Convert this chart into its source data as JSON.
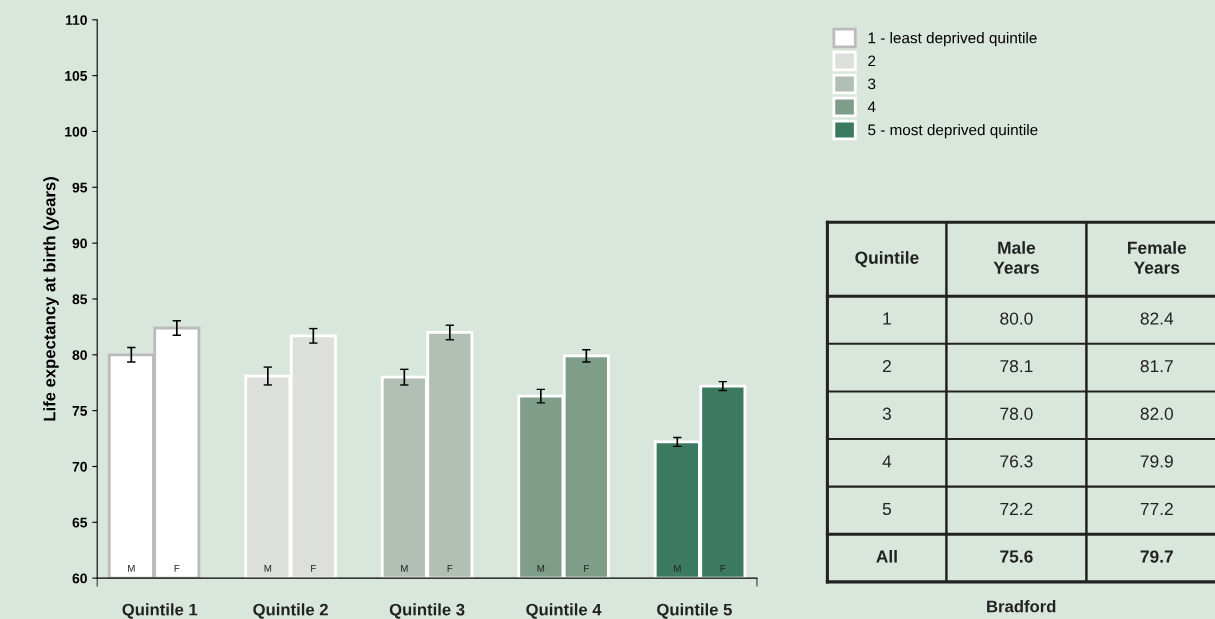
{
  "chart_data": {
    "type": "bar",
    "ylabel": "Life expectancy at birth (years)",
    "categories": [
      "M",
      "F",
      null,
      "M",
      "F",
      null,
      "M",
      "F",
      null,
      "M",
      "F",
      null,
      "M",
      "F"
    ],
    "series": [
      {
        "name": "1 - least deprived quintile",
        "color": "#ffffff",
        "values": [
          80.0,
          82.4,
          null,
          null,
          null,
          null,
          null,
          null,
          null,
          null,
          null,
          null,
          null,
          null
        ],
        "errors": [
          0.65,
          0.65,
          null,
          null,
          null,
          null,
          null,
          null,
          null,
          null,
          null,
          null,
          null,
          null
        ]
      },
      {
        "name": "2",
        "color": "#dcdfdb",
        "values": [
          null,
          null,
          null,
          78.1,
          81.7,
          null,
          null,
          null,
          null,
          null,
          null,
          null,
          null,
          null
        ],
        "errors": [
          null,
          null,
          null,
          0.8,
          0.65,
          null,
          null,
          null,
          null,
          null,
          null,
          null,
          null,
          null
        ]
      },
      {
        "name": "3",
        "color": "#b1bfb4",
        "values": [
          null,
          null,
          null,
          null,
          null,
          null,
          78.0,
          82.0,
          null,
          null,
          null,
          null,
          null,
          null
        ],
        "errors": [
          null,
          null,
          null,
          null,
          null,
          null,
          0.7,
          0.65,
          null,
          null,
          null,
          null,
          null,
          null
        ]
      },
      {
        "name": "4",
        "color": "#7f9e8a",
        "values": [
          null,
          null,
          null,
          null,
          null,
          null,
          null,
          null,
          null,
          76.3,
          79.9,
          null,
          null,
          null
        ],
        "errors": [
          null,
          null,
          null,
          null,
          null,
          null,
          null,
          null,
          null,
          0.6,
          0.55,
          null,
          null,
          null
        ]
      },
      {
        "name": "5 - most deprived quintile",
        "color": "#3b7a60",
        "values": [
          null,
          null,
          null,
          null,
          null,
          null,
          null,
          null,
          null,
          null,
          null,
          null,
          72.2,
          77.2
        ],
        "errors": [
          null,
          null,
          null,
          null,
          null,
          null,
          null,
          null,
          null,
          null,
          null,
          null,
          0.4,
          0.4
        ]
      }
    ],
    "ylim": [
      60,
      110
    ],
    "yticks": [
      60,
      65,
      70,
      75,
      80,
      85,
      90,
      95,
      100,
      105,
      110
    ],
    "legend": "top right",
    "annotations": [
      "Quintile 1",
      "Quintile 2",
      "Quintile 3",
      "Quintile 4",
      "Quintile 5",
      "Quintile",
      "Male\nYears",
      "Female\nYears",
      "1",
      "80.0",
      "82.4",
      "2",
      "78.1",
      "81.7",
      "3",
      "78.0",
      "82.0",
      "4",
      "76.3",
      "79.9",
      "5",
      "72.2",
      "77.2",
      "All",
      "75.6",
      "79.7",
      "Bradford"
    ]
  }
}
